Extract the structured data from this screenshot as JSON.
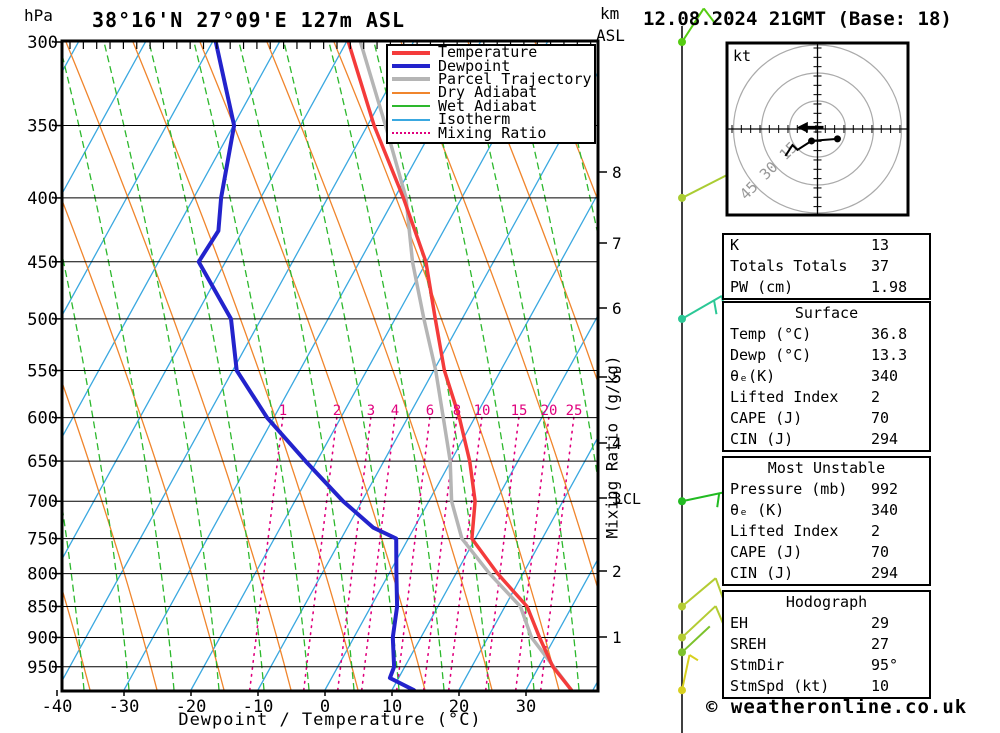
{
  "header": {
    "pressure_unit": "hPa",
    "title": "38°16'N 27°09'E 127m ASL",
    "height_unit_line1": "km",
    "height_unit_line2": "ASL",
    "datetime": "12.08.2024 21GMT (Base: 18)"
  },
  "footer": {
    "xaxis_label": "Dewpoint / Temperature (°C)",
    "copyright": "© weatheronline.co.uk"
  },
  "side_labels": {
    "mixing_axis_label": "Mixing Ratio (g/kg)",
    "lcl_label": "LCL",
    "hodo_unit": "kt"
  },
  "legend": {
    "items": [
      {
        "label": "Temperature",
        "color": "#f43b3b",
        "style": "solid-thick"
      },
      {
        "label": "Dewpoint",
        "color": "#2323cc",
        "style": "solid-thick"
      },
      {
        "label": "Parcel Trajectory",
        "color": "#b5b5b5",
        "style": "solid-thick"
      },
      {
        "label": "Dry Adiabat",
        "color": "#f0852c",
        "style": "solid-thin"
      },
      {
        "label": "Wet Adiabat",
        "color": "#2db82d",
        "style": "solid-thin"
      },
      {
        "label": "Isotherm",
        "color": "#3aa8e0",
        "style": "solid-thin"
      },
      {
        "label": "Mixing Ratio",
        "color": "#e0007d",
        "style": "dotted"
      }
    ]
  },
  "chart_data": {
    "type": "skewt_sounding",
    "title": "38°16'N 27°09'E 127m ASL",
    "xlabel": "Dewpoint / Temperature (°C)",
    "xlim": [
      -40,
      40
    ],
    "pressure_range_hPa": [
      300,
      992
    ],
    "pressure_ticks": [
      300,
      350,
      400,
      450,
      500,
      550,
      600,
      650,
      700,
      750,
      800,
      850,
      900,
      950
    ],
    "temp_ticks": [
      -40,
      -30,
      -20,
      -10,
      0,
      10,
      20,
      30
    ],
    "km_ticks": [
      1,
      2,
      3,
      4,
      5,
      6,
      7,
      8
    ],
    "mixing_ratio_labels": [
      1,
      2,
      3,
      4,
      6,
      8,
      10,
      15,
      20,
      25
    ],
    "colors": {
      "temperature": "#f43b3b",
      "dewpoint": "#2323cc",
      "parcel": "#b5b5b5",
      "dry_adiabat": "#f0852c",
      "wet_adiabat": "#2db82d",
      "isotherm": "#3aa8e0",
      "mixing_ratio": "#e0007d"
    },
    "temperature_profile": [
      {
        "p": 992,
        "t": 36.8
      },
      {
        "p": 950,
        "t": 32.1
      },
      {
        "p": 900,
        "t": 27.7
      },
      {
        "p": 850,
        "t": 23.3
      },
      {
        "p": 800,
        "t": 16.2
      },
      {
        "p": 750,
        "t": 9.5
      },
      {
        "p": 700,
        "t": 6.9
      },
      {
        "p": 650,
        "t": 2.8
      },
      {
        "p": 600,
        "t": -2.3
      },
      {
        "p": 550,
        "t": -8.4
      },
      {
        "p": 500,
        "t": -14.0
      },
      {
        "p": 450,
        "t": -20.1
      },
      {
        "p": 400,
        "t": -28.7
      },
      {
        "p": 350,
        "t": -39.0
      },
      {
        "p": 300,
        "t": -49.7
      }
    ],
    "dewpoint_profile": [
      {
        "p": 992,
        "t": 13.3
      },
      {
        "p": 970,
        "t": 8.7
      },
      {
        "p": 950,
        "t": 8.4
      },
      {
        "p": 900,
        "t": 5.8
      },
      {
        "p": 850,
        "t": 3.9
      },
      {
        "p": 800,
        "t": 1.1
      },
      {
        "p": 750,
        "t": -1.8
      },
      {
        "p": 735,
        "t": -6.1
      },
      {
        "p": 700,
        "t": -12.8
      },
      {
        "p": 650,
        "t": -21.7
      },
      {
        "p": 600,
        "t": -31.0
      },
      {
        "p": 550,
        "t": -39.4
      },
      {
        "p": 500,
        "t": -44.5
      },
      {
        "p": 450,
        "t": -54.0
      },
      {
        "p": 425,
        "t": -53.6
      },
      {
        "p": 400,
        "t": -55.9
      },
      {
        "p": 350,
        "t": -59.9
      },
      {
        "p": 300,
        "t": -69.5
      }
    ],
    "parcel_profile": [
      {
        "p": 992,
        "t": 36.8
      },
      {
        "p": 900,
        "t": 26.5
      },
      {
        "p": 850,
        "t": 22.3
      },
      {
        "p": 800,
        "t": 15.0
      },
      {
        "p": 750,
        "t": 8.0
      },
      {
        "p": 700,
        "t": 3.4
      },
      {
        "p": 650,
        "t": -0.1
      },
      {
        "p": 600,
        "t": -4.7
      },
      {
        "p": 550,
        "t": -9.7
      },
      {
        "p": 500,
        "t": -15.7
      },
      {
        "p": 450,
        "t": -22.1
      },
      {
        "p": 400,
        "t": -28.3
      },
      {
        "p": 350,
        "t": -37.3
      },
      {
        "p": 300,
        "t": -47.9
      }
    ],
    "wind_barbs": [
      {
        "p": 300,
        "color": "#55cc11",
        "dir_deg": 57,
        "length": 40,
        "ticks": 1,
        "tick_len": 17
      },
      {
        "p": 400,
        "color": "#aacc33",
        "dir_deg": 27,
        "length": 50,
        "ticks": 1,
        "tick_len": 14
      },
      {
        "p": 500,
        "color": "#2cc896",
        "dir_deg": 30,
        "length": 46,
        "ticks": 2,
        "tick_len": 14
      },
      {
        "p": 700,
        "color": "#22bb22",
        "dir_deg": 12,
        "length": 47,
        "ticks": 2,
        "tick_len": 14
      },
      {
        "p": 850,
        "color": "#b4cc33",
        "dir_deg": 40,
        "length": 44,
        "ticks": 1,
        "tick_len": 22
      },
      {
        "p": 900,
        "color": "#b4cc33",
        "dir_deg": 43,
        "length": 46,
        "ticks": 1,
        "tick_len": 24
      },
      {
        "p": 925,
        "color": "#7cc22c",
        "dir_deg": 43,
        "length": 38,
        "ticks": 0,
        "tick_len": 0
      },
      {
        "p": 992,
        "color": "#d8d020",
        "dir_deg": 78,
        "length": 36,
        "ticks": 1,
        "tick_len": 10
      }
    ],
    "hodograph": {
      "unit_label": "kt",
      "ring_values_kt": [
        15,
        30,
        45
      ],
      "trace_kt": [
        [
          10.7,
          -5.3
        ],
        [
          -3.2,
          -6.4
        ],
        [
          -10.7,
          -11.2
        ],
        [
          -13.4,
          -8.6
        ],
        [
          -17.2,
          -14.4
        ]
      ],
      "storm_motion_kt": [
        -10,
        0.9
      ]
    }
  },
  "tables": {
    "indices": {
      "rows": [
        [
          "K",
          "13"
        ],
        [
          "Totals Totals",
          "37"
        ],
        [
          "PW (cm)",
          "1.98"
        ]
      ]
    },
    "surface": {
      "title": "Surface",
      "rows": [
        [
          "Temp (°C)",
          "36.8"
        ],
        [
          "Dewp (°C)",
          "13.3"
        ],
        [
          "θₑ(K)",
          "340"
        ],
        [
          "Lifted Index",
          "2"
        ],
        [
          "CAPE (J)",
          "70"
        ],
        [
          "CIN (J)",
          "294"
        ]
      ]
    },
    "most_unstable": {
      "title": "Most Unstable",
      "rows": [
        [
          "Pressure (mb)",
          "992"
        ],
        [
          "θₑ (K)",
          "340"
        ],
        [
          "Lifted Index",
          "2"
        ],
        [
          "CAPE (J)",
          "70"
        ],
        [
          "CIN (J)",
          "294"
        ]
      ]
    },
    "hodograph": {
      "title": "Hodograph",
      "rows": [
        [
          "EH",
          "29"
        ],
        [
          "SREH",
          "27"
        ],
        [
          "StmDir",
          "95°"
        ],
        [
          "StmSpd (kt)",
          "10"
        ]
      ]
    }
  }
}
